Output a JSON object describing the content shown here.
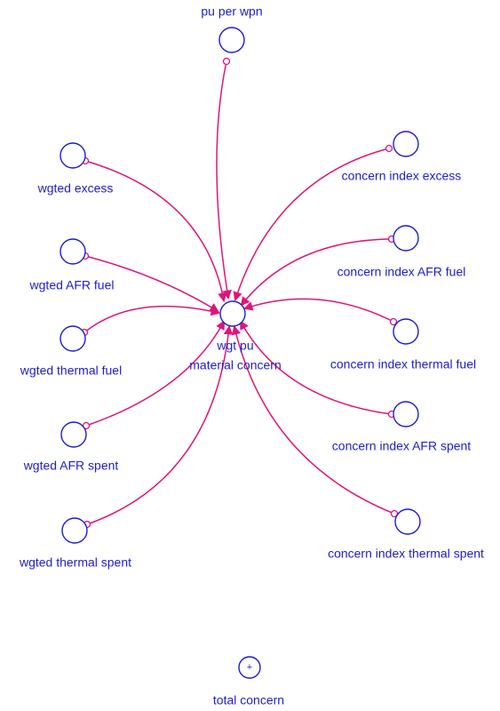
{
  "nodes": [
    {
      "label": "pu per wpn"
    },
    {
      "label": "wgted excess"
    },
    {
      "label": "wgted AFR fuel"
    },
    {
      "label": "wgted thermal fuel"
    },
    {
      "label": "wgted AFR spent"
    },
    {
      "label": "wgted thermal spent"
    },
    {
      "label": "concern index excess"
    },
    {
      "label": "concern index AFR fuel"
    },
    {
      "label": "concern index thermal fuel"
    },
    {
      "label": "concern index AFR spent"
    },
    {
      "label": "concern index thermal spent"
    },
    {
      "label": [
        "wgt pu",
        "material concern"
      ]
    },
    {
      "label": "total concern",
      "symbol": "+"
    }
  ]
}
